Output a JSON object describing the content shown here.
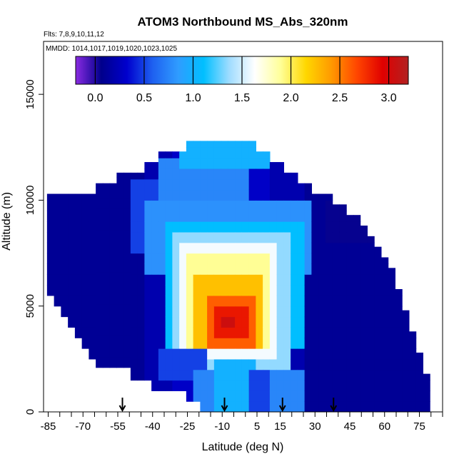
{
  "chart_data": {
    "type": "heatmap",
    "title": "ATOM3 Northbound MS_Abs_320nm",
    "flights_note": "Flts: 7,8,9,10,11,12",
    "dates_note": "MMDD: 1014,1017,1019,1020,1023,1025",
    "xlabel": "Latitude (deg N)",
    "ylabel": "Altitude (m)",
    "xlim": [
      -87,
      85
    ],
    "ylim": [
      0,
      17500
    ],
    "x_ticks": [
      -85,
      -70,
      -55,
      -40,
      -25,
      -10,
      5,
      15,
      30,
      45,
      60,
      75
    ],
    "y_ticks": [
      0,
      5000,
      10000,
      15000
    ],
    "colorbar": {
      "range": [
        -0.2,
        3.2
      ],
      "ticks": [
        0.0,
        0.5,
        1.0,
        1.5,
        2.0,
        2.5,
        3.0
      ],
      "tick_labels": [
        "0.0",
        "0.5",
        "1.0",
        "1.5",
        "2.0",
        "2.5",
        "3.0"
      ],
      "colors": [
        "#8a2be2",
        "#00008b",
        "#0000cd",
        "#1e60f0",
        "#2f9cff",
        "#00bfff",
        "#9fdcff",
        "#ffffff",
        "#ffff99",
        "#ffd700",
        "#ff9900",
        "#ff4500",
        "#e00000",
        "#b22222"
      ]
    },
    "arrows_latitude": [
      -53,
      -9,
      16,
      38
    ],
    "grid": false,
    "x_step": 3,
    "y_step": 500,
    "columns": [
      {
        "lat": -84,
        "bottom": 5500,
        "top": 10300,
        "value": 0.1
      },
      {
        "lat": -81,
        "bottom": 5000,
        "top": 10300,
        "value": 0.1
      },
      {
        "lat": -78,
        "bottom": 4500,
        "top": 10300,
        "value": 0.1
      },
      {
        "lat": -75,
        "bottom": 4000,
        "top": 10300,
        "value": 0.1
      },
      {
        "lat": -72,
        "bottom": 3500,
        "top": 10300,
        "value": 0.1
      },
      {
        "lat": -69,
        "bottom": 3000,
        "top": 10300,
        "value": 0.1
      },
      {
        "lat": -66,
        "bottom": 2500,
        "top": 10300,
        "value": 0.1
      },
      {
        "lat": -63,
        "bottom": 2100,
        "top": 10800,
        "value": 0.1
      },
      {
        "lat": -60,
        "bottom": 2100,
        "top": 10800,
        "value": 0.1
      },
      {
        "lat": -57,
        "bottom": 2100,
        "top": 10800,
        "value": 0.1
      },
      {
        "lat": -54,
        "bottom": 2100,
        "top": 11300,
        "value": 0.1
      },
      {
        "lat": -51,
        "bottom": 2100,
        "top": 11300,
        "value": 0.1
      },
      {
        "lat": -48,
        "bottom": 1500,
        "top": 11300,
        "value": 0.1
      },
      {
        "lat": -45,
        "bottom": 1500,
        "top": 11300,
        "value": 0.1
      },
      {
        "lat": -42,
        "bottom": 1500,
        "top": 11800,
        "value": 0.2
      },
      {
        "lat": -39,
        "bottom": 1000,
        "top": 11800,
        "value": 0.2
      },
      {
        "lat": -36,
        "bottom": 1000,
        "top": 12300,
        "value": 0.2
      },
      {
        "lat": -33,
        "bottom": 1000,
        "top": 12300,
        "value": 0.2
      },
      {
        "lat": -30,
        "bottom": 1000,
        "top": 12300,
        "value": 0.3
      },
      {
        "lat": -27,
        "bottom": 1000,
        "top": 12300,
        "value": 0.3
      },
      {
        "lat": -24,
        "bottom": 500,
        "top": 12800,
        "value": 0.3
      },
      {
        "lat": -21,
        "bottom": 500,
        "top": 12800,
        "value": 0.3
      },
      {
        "lat": -18,
        "bottom": 0,
        "top": 12800,
        "value": 0.3
      },
      {
        "lat": -15,
        "bottom": 0,
        "top": 12800,
        "value": 0.3
      },
      {
        "lat": -12,
        "bottom": 0,
        "top": 12800,
        "value": 0.3
      },
      {
        "lat": -9,
        "bottom": 0,
        "top": 12800,
        "value": 0.3
      },
      {
        "lat": -6,
        "bottom": 0,
        "top": 12800,
        "value": 0.3
      },
      {
        "lat": -3,
        "bottom": 0,
        "top": 12800,
        "value": 0.3
      },
      {
        "lat": 0,
        "bottom": 0,
        "top": 12800,
        "value": 0.3
      },
      {
        "lat": 3,
        "bottom": 0,
        "top": 12800,
        "value": 0.3
      },
      {
        "lat": 6,
        "bottom": 0,
        "top": 12300,
        "value": 0.3
      },
      {
        "lat": 9,
        "bottom": 0,
        "top": 12300,
        "value": 0.3
      },
      {
        "lat": 12,
        "bottom": 0,
        "top": 11800,
        "value": 0.2
      },
      {
        "lat": 15,
        "bottom": 0,
        "top": 11800,
        "value": 0.2
      },
      {
        "lat": 18,
        "bottom": 0,
        "top": 11300,
        "value": 0.2
      },
      {
        "lat": 21,
        "bottom": 0,
        "top": 11300,
        "value": 0.2
      },
      {
        "lat": 24,
        "bottom": 0,
        "top": 10800,
        "value": 0.2
      },
      {
        "lat": 27,
        "bottom": 0,
        "top": 10800,
        "value": 0.1
      },
      {
        "lat": 30,
        "bottom": 0,
        "top": 10300,
        "value": 0.1
      },
      {
        "lat": 33,
        "bottom": 0,
        "top": 10300,
        "value": 0.1
      },
      {
        "lat": 36,
        "bottom": 0,
        "top": 10300,
        "value": 0.1
      },
      {
        "lat": 39,
        "bottom": 0,
        "top": 9800,
        "value": 0.1
      },
      {
        "lat": 42,
        "bottom": 0,
        "top": 9800,
        "value": 0.1
      },
      {
        "lat": 45,
        "bottom": 0,
        "top": 9300,
        "value": 0.1
      },
      {
        "lat": 48,
        "bottom": 0,
        "top": 9300,
        "value": 0.1
      },
      {
        "lat": 51,
        "bottom": 0,
        "top": 8800,
        "value": 0.1
      },
      {
        "lat": 54,
        "bottom": 0,
        "top": 8300,
        "value": 0.1
      },
      {
        "lat": 57,
        "bottom": 0,
        "top": 7800,
        "value": 0.1
      },
      {
        "lat": 60,
        "bottom": 0,
        "top": 7300,
        "value": 0.1
      },
      {
        "lat": 63,
        "bottom": 0,
        "top": 6800,
        "value": 0.1
      },
      {
        "lat": 66,
        "bottom": 0,
        "top": 5800,
        "value": 0.1
      },
      {
        "lat": 69,
        "bottom": 0,
        "top": 4800,
        "value": 0.1
      },
      {
        "lat": 72,
        "bottom": 0,
        "top": 3800,
        "value": 0.1
      },
      {
        "lat": 75,
        "bottom": 0,
        "top": 2800,
        "value": 0.1
      },
      {
        "lat": 78,
        "bottom": 0,
        "top": 1800,
        "value": 0.1
      }
    ],
    "features": [
      {
        "lat": [
          -50,
          -36
        ],
        "alt": [
          7500,
          11000
        ],
        "value": 0.5
      },
      {
        "lat": [
          -36,
          0
        ],
        "alt": [
          9500,
          11800
        ],
        "value": 0.75
      },
      {
        "lat": [
          -27,
          9
        ],
        "alt": [
          11500,
          12800
        ],
        "value": 1.0
      },
      {
        "lat": [
          -42,
          27
        ],
        "alt": [
          6500,
          9800
        ],
        "value": 0.8
      },
      {
        "lat": [
          -33,
          24
        ],
        "alt": [
          3000,
          9000
        ],
        "value": 1.1
      },
      {
        "lat": [
          -30,
          18
        ],
        "alt": [
          2000,
          8500
        ],
        "value": 1.35
      },
      {
        "lat": [
          -27,
          12
        ],
        "alt": [
          2500,
          8000
        ],
        "value": 1.6
      },
      {
        "lat": [
          -24,
          9
        ],
        "alt": [
          2800,
          7500
        ],
        "value": 1.9
      },
      {
        "lat": [
          -21,
          6
        ],
        "alt": [
          3000,
          6500
        ],
        "value": 2.25
      },
      {
        "lat": [
          -15,
          3
        ],
        "alt": [
          3200,
          5500
        ],
        "value": 2.6
      },
      {
        "lat": [
          -12,
          0
        ],
        "alt": [
          3500,
          4800
        ],
        "value": 2.85
      },
      {
        "lat": [
          -9,
          -6
        ],
        "alt": [
          3800,
          4300
        ],
        "value": 3.05
      },
      {
        "lat": [
          -36,
          -18
        ],
        "alt": [
          1500,
          3000
        ],
        "value": 0.5
      },
      {
        "lat": [
          -21,
          24
        ],
        "alt": [
          0,
          2000
        ],
        "value": 0.75
      },
      {
        "lat": [
          -12,
          3
        ],
        "alt": [
          0,
          2500
        ],
        "value": 1.0
      },
      {
        "lat": [
          3,
          9
        ],
        "alt": [
          0,
          2000
        ],
        "value": 0.5
      },
      {
        "lat": [
          36,
          60
        ],
        "alt": [
          8000,
          9800
        ],
        "value": 0.05
      }
    ]
  }
}
